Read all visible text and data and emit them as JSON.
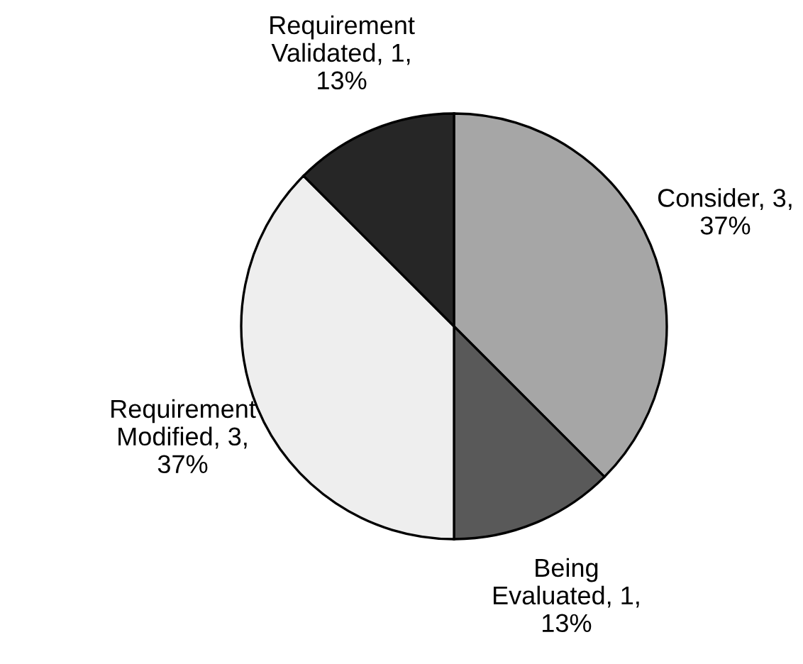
{
  "chart_data": {
    "type": "pie",
    "categories": [
      "Consider",
      "Being Evaluated",
      "Requirement Modified",
      "Requirement Validated"
    ],
    "values": [
      3,
      1,
      3,
      1
    ],
    "colors": [
      "#a6a6a6",
      "#595959",
      "#eeeeee",
      "#262626"
    ],
    "value_labels": [
      "3, 37%",
      "1, 13%",
      "3, 37%",
      "1, 13%"
    ],
    "legend": false
  }
}
